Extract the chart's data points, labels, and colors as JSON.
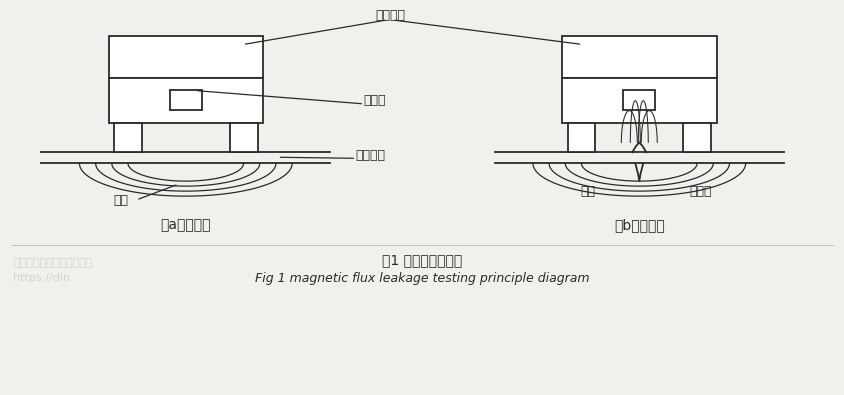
{
  "bg_color": "#f0f0ec",
  "line_color": "#2a2a2a",
  "watermark_color": "#c8c8c8",
  "title_cn": "图1 漏磁检测原理图",
  "title_en": "Fig 1 magnetic flux leakage testing principle diagram",
  "caption_a": "（a）无缺陷",
  "caption_b": "（b）有缺陷",
  "label_cihua": "磁化结构",
  "label_chuangan": "传感器",
  "label_beice": "被测工件",
  "label_citong": "磁通",
  "label_quexian": "缺陷",
  "label_loumag": "漏磁通",
  "watermark1": "北京鼎誉兴业科技有限公司",
  "watermark2": "https://din",
  "lw_main": 1.3,
  "lw_flux": 0.9,
  "lw_ann": 0.9
}
